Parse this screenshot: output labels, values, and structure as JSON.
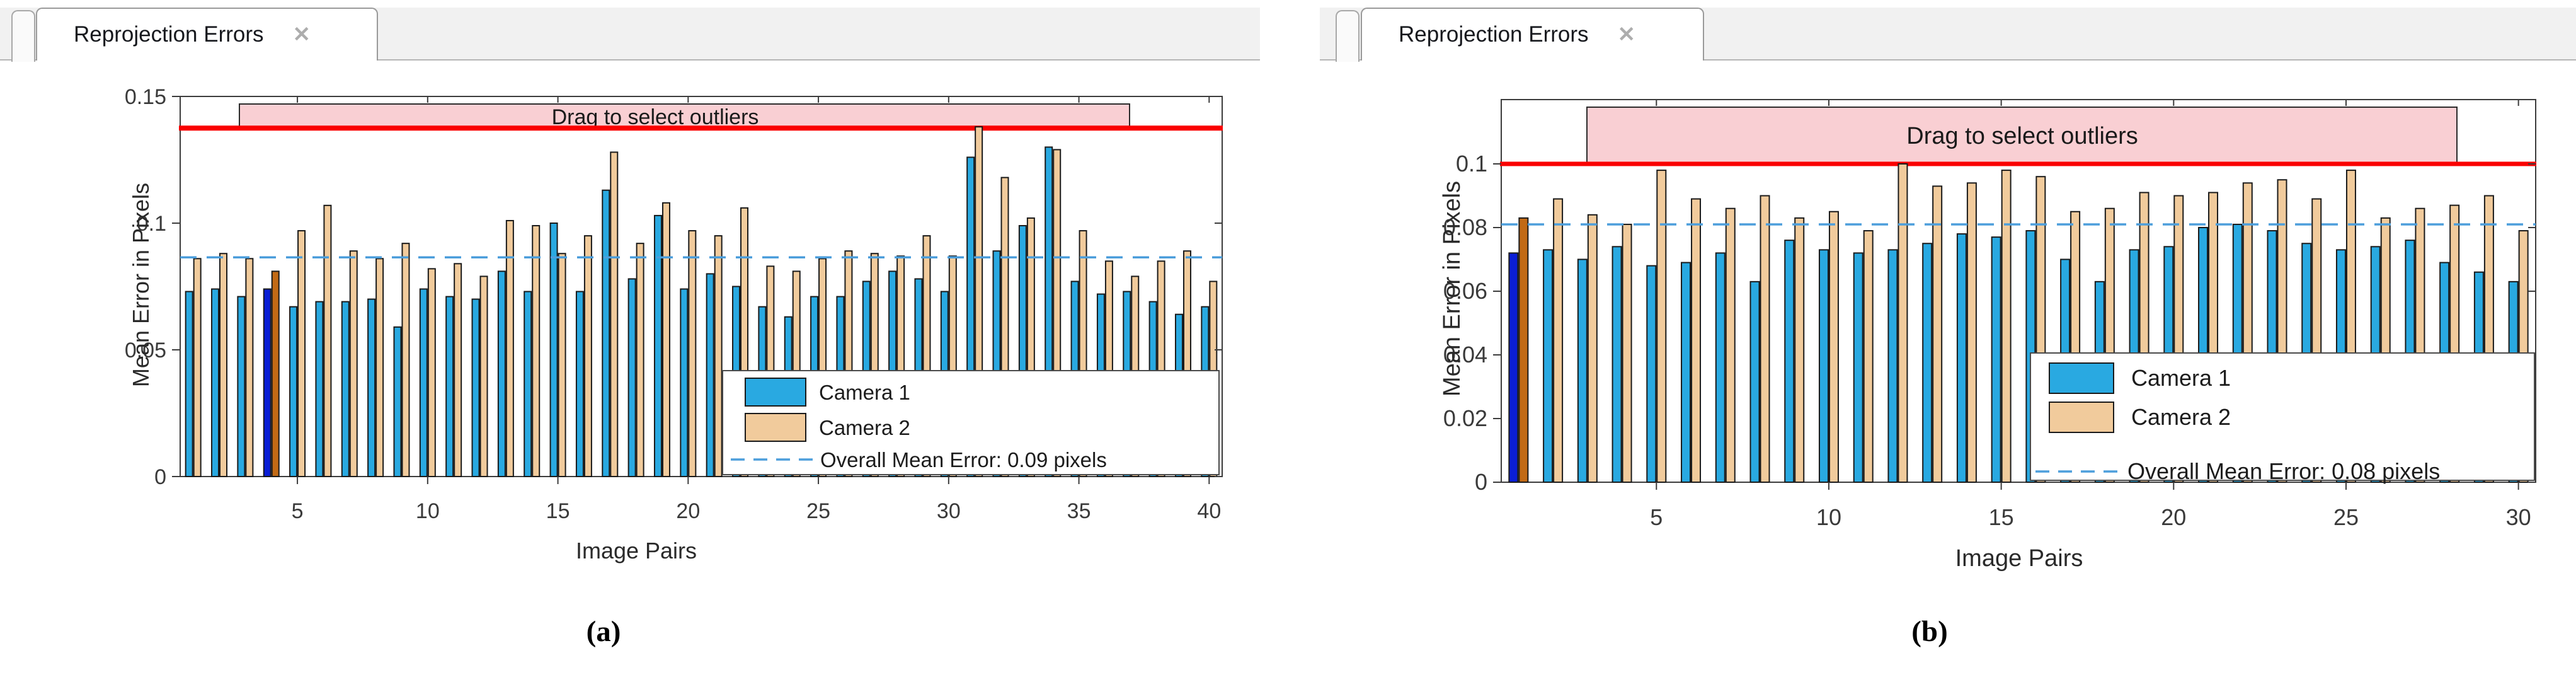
{
  "colors": {
    "camera1": "#29A9E1",
    "camera2": "#F1CB9C",
    "camera1_selected": "#0A1ED6",
    "camera2_selected": "#C26A15",
    "red_line": "#FA0000",
    "mean_line": "#4C9EDB",
    "banner_fill": "#F9CFD3",
    "bar_outline": "#1A1A1A",
    "axis": "#3C3C3C"
  },
  "panels": [
    {
      "tab": {
        "title": "Reprojection Errors",
        "close_icon": "✕"
      },
      "caption": "(a)",
      "chart_data": {
        "type": "bar",
        "title": "Reprojection Errors",
        "xlabel": "Image Pairs",
        "ylabel": "Mean Error in Pixels",
        "banner": "Drag to select outliers",
        "n_pairs": 40,
        "xticks": [
          5,
          10,
          15,
          20,
          25,
          30,
          35,
          40
        ],
        "yticks": [
          "0",
          "0.05",
          "0.1",
          "0.15"
        ],
        "ytick_values": [
          0,
          0.05,
          0.1,
          0.15
        ],
        "ylim": [
          0,
          0.15
        ],
        "series": [
          {
            "name": "Camera 1",
            "values": [
              0.073,
              0.074,
              0.071,
              0.074,
              0.067,
              0.069,
              0.069,
              0.07,
              0.059,
              0.074,
              0.071,
              0.07,
              0.081,
              0.073,
              0.1,
              0.073,
              0.113,
              0.078,
              0.103,
              0.074,
              0.08,
              0.075,
              0.067,
              0.063,
              0.071,
              0.071,
              0.077,
              0.081,
              0.078,
              0.073,
              0.126,
              0.089,
              0.099,
              0.13,
              0.077,
              0.072,
              0.073,
              0.069,
              0.064,
              0.067
            ]
          },
          {
            "name": "Camera 2",
            "values": [
              0.086,
              0.088,
              0.086,
              0.081,
              0.097,
              0.107,
              0.089,
              0.086,
              0.092,
              0.082,
              0.084,
              0.079,
              0.101,
              0.099,
              0.088,
              0.095,
              0.128,
              0.092,
              0.108,
              0.097,
              0.095,
              0.106,
              0.083,
              0.081,
              0.086,
              0.089,
              0.088,
              0.087,
              0.095,
              0.087,
              0.138,
              0.118,
              0.102,
              0.129,
              0.097,
              0.085,
              0.079,
              0.085,
              0.089,
              0.077
            ]
          }
        ],
        "highlighted_pair": 4,
        "red_line": 0.1375,
        "mean_line": 0.0865,
        "legend": [
          "Camera 1",
          "Camera 2",
          "Overall Mean Error: 0.09 pixels"
        ],
        "mean_label": "Overall Mean Error: 0.09 pixels"
      }
    },
    {
      "tab": {
        "title": "Reprojection Errors",
        "close_icon": "✕"
      },
      "caption": "(b)",
      "chart_data": {
        "type": "bar",
        "title": "Reprojection Errors",
        "xlabel": "Image Pairs",
        "ylabel": "Mean Error in Pixels",
        "banner": "Drag to select outliers",
        "n_pairs": 30,
        "xticks": [
          5,
          10,
          15,
          20,
          25,
          30
        ],
        "yticks": [
          "0",
          "0.02",
          "0.04",
          "0.06",
          "0.08",
          "0.1"
        ],
        "ytick_values": [
          0,
          0.02,
          0.04,
          0.06,
          0.08,
          0.1
        ],
        "ylim": [
          0,
          0.12
        ],
        "series": [
          {
            "name": "Camera 1",
            "values": [
              0.072,
              0.073,
              0.07,
              0.074,
              0.068,
              0.069,
              0.072,
              0.063,
              0.076,
              0.073,
              0.072,
              0.073,
              0.075,
              0.078,
              0.077,
              0.079,
              0.07,
              0.063,
              0.073,
              0.074,
              0.08,
              0.081,
              0.079,
              0.075,
              0.073,
              0.074,
              0.076,
              0.069,
              0.066,
              0.063
            ]
          },
          {
            "name": "Camera 2",
            "values": [
              0.083,
              0.089,
              0.084,
              0.081,
              0.098,
              0.089,
              0.086,
              0.09,
              0.083,
              0.085,
              0.079,
              0.1,
              0.093,
              0.094,
              0.098,
              0.096,
              0.085,
              0.086,
              0.091,
              0.09,
              0.091,
              0.094,
              0.095,
              0.089,
              0.098,
              0.083,
              0.086,
              0.087,
              0.09,
              0.079
            ]
          }
        ],
        "highlighted_pair": 1,
        "red_line": 0.1,
        "mean_line": 0.081,
        "legend": [
          "Camera 1",
          "Camera 2",
          "Overall Mean Error: 0.08 pixels"
        ],
        "mean_label": "Overall Mean Error: 0.08 pixels"
      }
    }
  ]
}
